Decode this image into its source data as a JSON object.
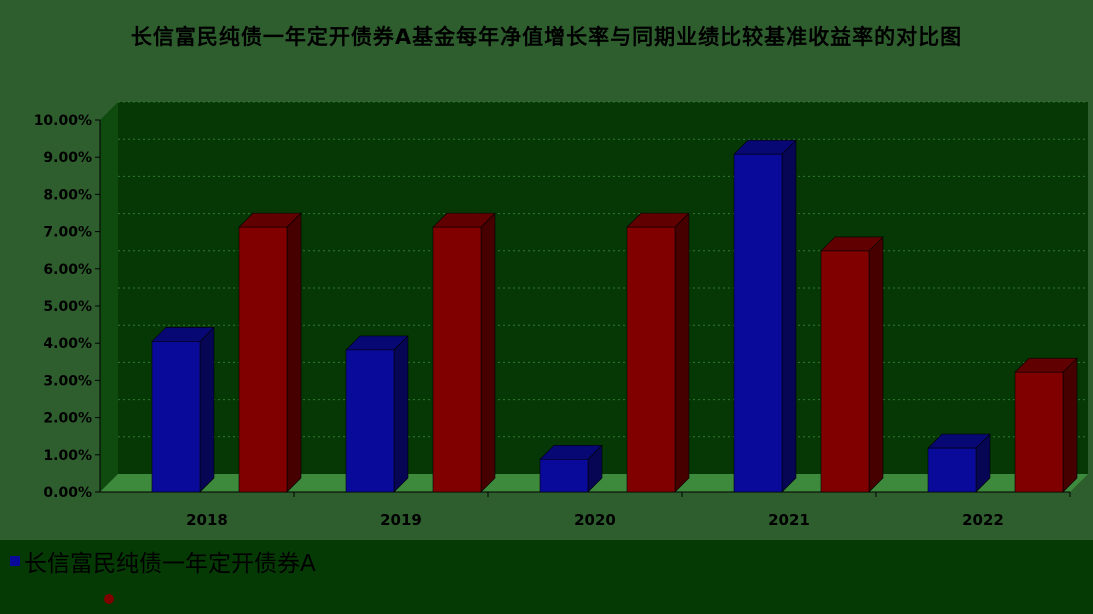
{
  "chart_data": {
    "type": "bar",
    "title": "长信富民纯债一年定开债券A基金每年净值增长率与同期业绩比较基准收益率的对比图",
    "categories": [
      "2018",
      "2019",
      "2020",
      "2021",
      "2022"
    ],
    "series": [
      {
        "name": "长信富民纯债一年定开债券A",
        "color": "#0a0a9a",
        "values": [
          4.05,
          3.82,
          0.88,
          9.08,
          1.18
        ]
      },
      {
        "name": "",
        "color": "#800000",
        "values": [
          7.12,
          7.12,
          7.12,
          6.48,
          3.22
        ]
      }
    ],
    "ylim": [
      0,
      10
    ],
    "yticks": [
      "0.00%",
      "1.00%",
      "2.00%",
      "3.00%",
      "4.00%",
      "5.00%",
      "6.00%",
      "7.00%",
      "8.00%",
      "9.00%",
      "10.00%"
    ],
    "grid": true,
    "legend": "bottom"
  }
}
